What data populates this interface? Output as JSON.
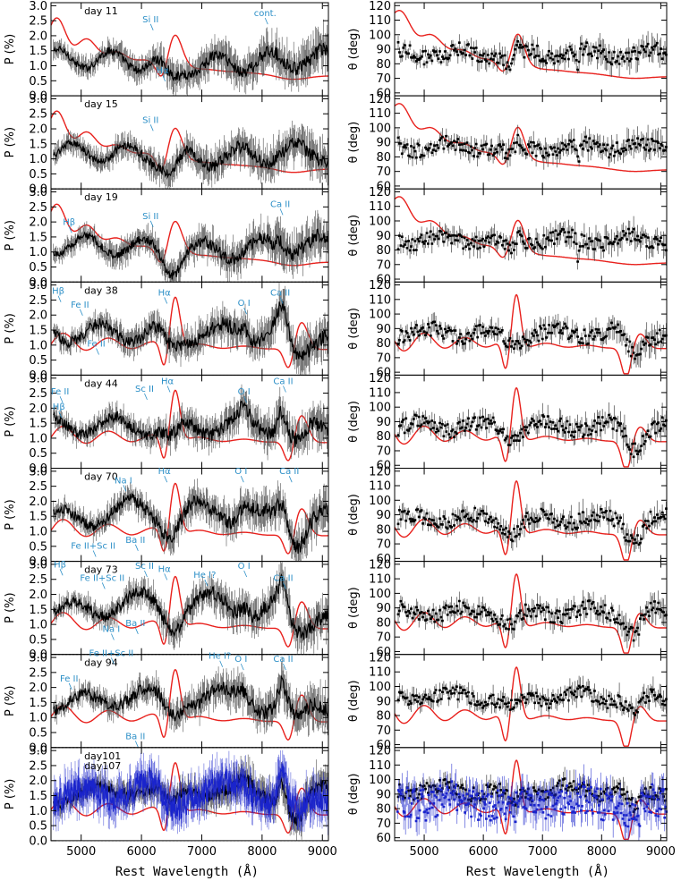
{
  "figure": {
    "x_axis_label": "Rest Wavelength (Å)",
    "colors": {
      "data": "#000000",
      "model": "#e8201c",
      "label": "#2c8fc7",
      "second_epoch": "#1a24cc"
    }
  },
  "chart_data": [
    {
      "type": "line",
      "panel": "polarization",
      "ylabel": "P (%)",
      "xlim": [
        4500,
        9100
      ],
      "x_ticks": [
        5000,
        6000,
        7000,
        8000,
        9000
      ],
      "ylim": [
        0,
        3.1
      ],
      "y_ticks": [
        0.0,
        0.5,
        1.0,
        1.5,
        2.0,
        2.5,
        3.0
      ],
      "y_tick_labels": [
        "0.0",
        "0.5",
        "1.0",
        "1.5",
        "2.0",
        "2.5",
        "3.0"
      ],
      "epochs": [
        {
          "day": "day 11",
          "annotations": [
            {
              "text": "Si II",
              "x": 6150,
              "y": 2.45
            },
            {
              "text": "Hα",
              "x": 6350,
              "y": 0.75
            },
            {
              "text": "cont.",
              "x": 8050,
              "y": 2.65
            }
          ]
        },
        {
          "day": "day 15",
          "annotations": [
            {
              "text": "Si II",
              "x": 6150,
              "y": 2.2
            }
          ]
        },
        {
          "day": "day 19",
          "annotations": [
            {
              "text": "Hβ",
              "x": 4800,
              "y": 1.9
            },
            {
              "text": "Si II",
              "x": 6150,
              "y": 2.1
            },
            {
              "text": "Ca II",
              "x": 8300,
              "y": 2.5
            }
          ]
        },
        {
          "day": "day 38",
          "annotations": [
            {
              "text": "Hβ",
              "x": 4620,
              "y": 2.7
            },
            {
              "text": "Fe II",
              "x": 4980,
              "y": 2.25
            },
            {
              "text": "Fe II",
              "x": 5250,
              "y": 0.95
            },
            {
              "text": "Hα",
              "x": 6380,
              "y": 2.65
            },
            {
              "text": "O I",
              "x": 7700,
              "y": 2.3
            },
            {
              "text": "Ca II",
              "x": 8300,
              "y": 2.65
            }
          ]
        },
        {
          "day": "day 44",
          "annotations": [
            {
              "text": "Fe II",
              "x": 4650,
              "y": 2.45
            },
            {
              "text": "Hβ",
              "x": 4630,
              "y": 1.95
            },
            {
              "text": "Sc II",
              "x": 6050,
              "y": 2.55
            },
            {
              "text": "Hα",
              "x": 6430,
              "y": 2.8
            },
            {
              "text": "O I",
              "x": 7700,
              "y": 2.45
            },
            {
              "text": "Ca II",
              "x": 8350,
              "y": 2.8
            }
          ]
        },
        {
          "day": "day 70",
          "annotations": [
            {
              "text": "Na I",
              "x": 5700,
              "y": 2.6
            },
            {
              "text": "Hα",
              "x": 6380,
              "y": 2.9
            },
            {
              "text": "O I",
              "x": 7650,
              "y": 2.9
            },
            {
              "text": "Ca II",
              "x": 8450,
              "y": 2.9
            },
            {
              "text": "Fe II+Sc II",
              "x": 5200,
              "y": 0.42
            },
            {
              "text": "Ba II",
              "x": 5900,
              "y": 0.62
            }
          ]
        },
        {
          "day": "day 73",
          "annotations": [
            {
              "text": "Hβ",
              "x": 4650,
              "y": 2.9
            },
            {
              "text": "Fe II+Sc II",
              "x": 5350,
              "y": 2.45
            },
            {
              "text": "Sc II",
              "x": 6050,
              "y": 2.85
            },
            {
              "text": "Hα",
              "x": 6380,
              "y": 2.75
            },
            {
              "text": "He I?",
              "x": 7050,
              "y": 2.55
            },
            {
              "text": "O I",
              "x": 7700,
              "y": 2.85
            },
            {
              "text": "Ca II",
              "x": 8350,
              "y": 2.45
            },
            {
              "text": "Na I",
              "x": 5500,
              "y": 0.75
            },
            {
              "text": "Ba II",
              "x": 5900,
              "y": 0.95
            }
          ]
        },
        {
          "day": "day 94",
          "annotations": [
            {
              "text": "Fe II+Sc II",
              "x": 5500,
              "y": 3.05
            },
            {
              "text": "He I?",
              "x": 7300,
              "y": 2.95
            },
            {
              "text": "O I",
              "x": 7650,
              "y": 2.85
            },
            {
              "text": "Ca II",
              "x": 8350,
              "y": 2.85
            },
            {
              "text": "Fe II",
              "x": 4800,
              "y": 2.2
            },
            {
              "text": "Ba II",
              "x": 5900,
              "y": 0.28
            }
          ]
        },
        {
          "day": "day101",
          "day_second": "day107",
          "annotations": []
        }
      ]
    },
    {
      "type": "line",
      "panel": "position_angle",
      "ylabel": "θ (deg)",
      "xlim": [
        4500,
        9100
      ],
      "x_ticks": [
        5000,
        6000,
        7000,
        8000,
        9000
      ],
      "ylim": [
        58,
        122
      ],
      "y_ticks": [
        60,
        70,
        80,
        90,
        100,
        110,
        120
      ],
      "y_tick_labels": [
        "60",
        "70",
        "80",
        "90",
        "100",
        "110",
        "120"
      ],
      "epochs": [
        "day 11",
        "day 15",
        "day 19",
        "day 38",
        "day 44",
        "day 70",
        "day 73",
        "day 94",
        "day101"
      ]
    }
  ]
}
